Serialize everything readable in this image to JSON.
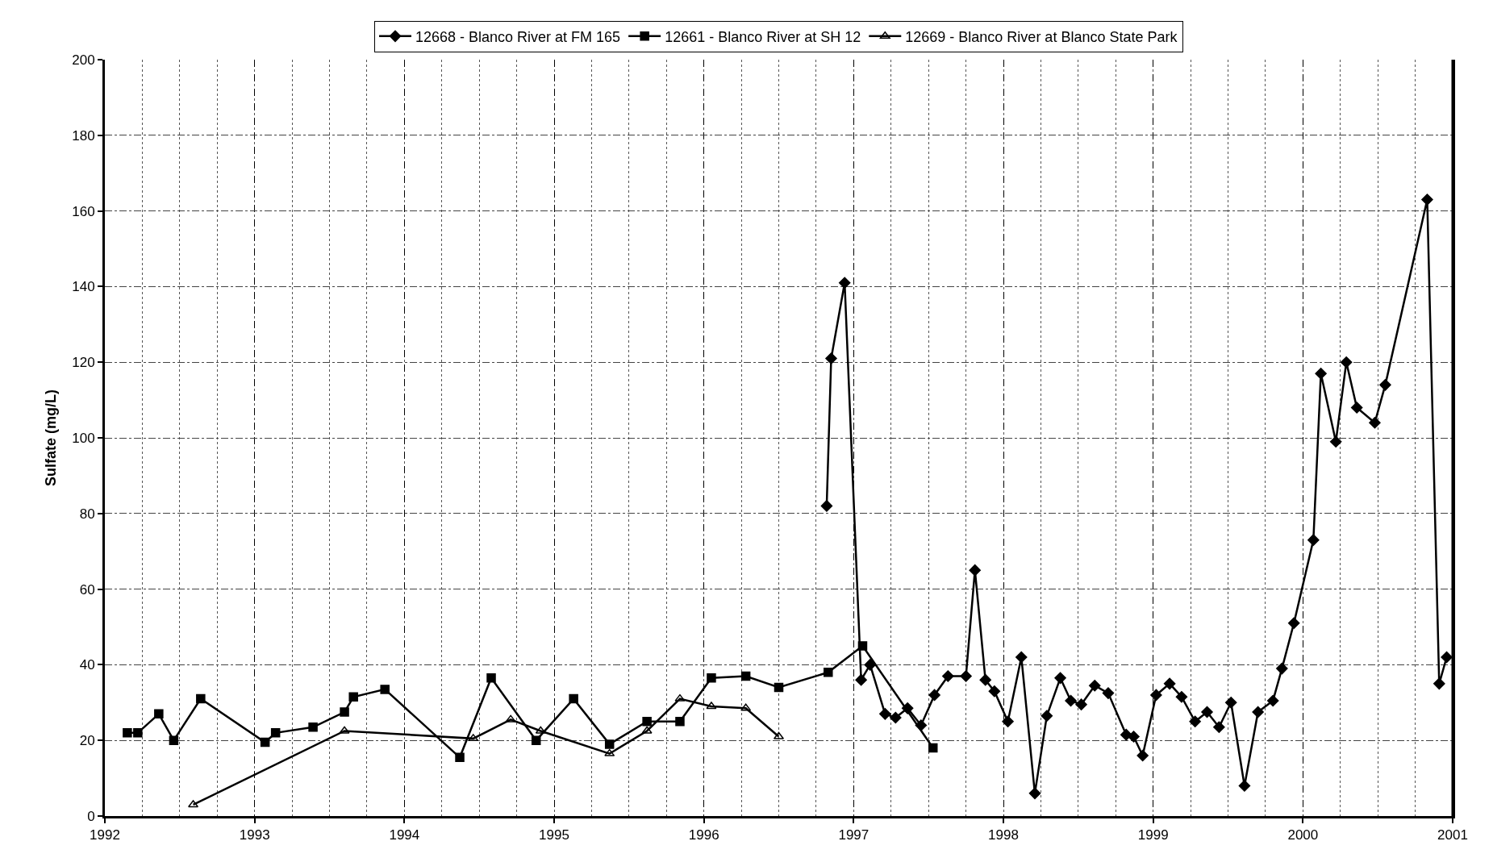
{
  "chart_data": {
    "type": "line",
    "ylabel": "Sulfate (mg/L)",
    "xlim": [
      1992,
      2001
    ],
    "xticks": [
      1992,
      1993,
      1994,
      1995,
      1996,
      1997,
      1998,
      1999,
      2000,
      2001
    ],
    "ylim": [
      0,
      200
    ],
    "yticks": [
      0,
      20,
      40,
      60,
      80,
      100,
      120,
      140,
      160,
      180,
      200
    ],
    "grid": true,
    "legend": "top",
    "line_style": "solid",
    "series": [
      {
        "name": "12668 - Blanco River at FM 165",
        "color": "#000000",
        "marker": "diamond",
        "x": [
          1996.82,
          1996.85,
          1996.94,
          1997.05,
          1997.11,
          1997.21,
          1997.28,
          1997.36,
          1997.45,
          1997.54,
          1997.63,
          1997.75,
          1997.81,
          1997.88,
          1997.94,
          1998.03,
          1998.12,
          1998.21,
          1998.29,
          1998.38,
          1998.45,
          1998.52,
          1998.61,
          1998.7,
          1998.82,
          1998.87,
          1998.93,
          1999.02,
          1999.11,
          1999.19,
          1999.28,
          1999.36,
          1999.44,
          1999.52,
          1999.61,
          1999.7,
          1999.8,
          1999.86,
          1999.94,
          2000.07,
          2000.12,
          2000.22,
          2000.29,
          2000.36,
          2000.48,
          2000.55,
          2000.83,
          2000.91,
          2000.96
        ],
        "values": [
          82,
          121,
          141,
          36,
          40,
          27,
          26,
          28.5,
          24,
          32,
          37,
          37,
          65,
          36,
          33,
          25,
          42,
          6,
          26.5,
          36.5,
          30.5,
          29.5,
          34.5,
          32.5,
          21.5,
          21,
          16,
          32,
          35,
          31.5,
          25,
          27.5,
          23.5,
          30,
          8,
          27.5,
          30.5,
          39,
          51,
          73,
          117,
          99,
          120,
          108,
          104,
          114,
          163,
          35,
          42
        ]
      },
      {
        "name": "12661 - Blanco River at SH 12",
        "color": "#000000",
        "marker": "square",
        "x": [
          1992.15,
          1992.22,
          1992.36,
          1992.46,
          1992.64,
          1993.07,
          1993.14,
          1993.39,
          1993.6,
          1993.66,
          1993.87,
          1994.37,
          1994.58,
          1994.88,
          1995.13,
          1995.37,
          1995.62,
          1995.84,
          1996.05,
          1996.28,
          1996.5,
          1996.83,
          1997.06,
          1997.53
        ],
        "values": [
          22,
          22,
          27,
          20,
          31,
          19.5,
          22,
          23.5,
          27.5,
          31.5,
          33.5,
          15.5,
          36.5,
          20,
          31,
          19,
          25,
          25,
          36.5,
          37,
          34,
          38,
          45,
          18
        ]
      },
      {
        "name": "12669 - Blanco River at Blanco State Park",
        "color": "#000000",
        "marker": "triangle",
        "x": [
          1992.59,
          1993.6,
          1994.46,
          1994.71,
          1994.91,
          1995.37,
          1995.62,
          1995.84,
          1996.05,
          1996.28,
          1996.5
        ],
        "values": [
          3,
          22.5,
          20.5,
          25.5,
          22.5,
          16.5,
          22.5,
          31,
          29,
          28.5,
          21
        ]
      }
    ]
  }
}
